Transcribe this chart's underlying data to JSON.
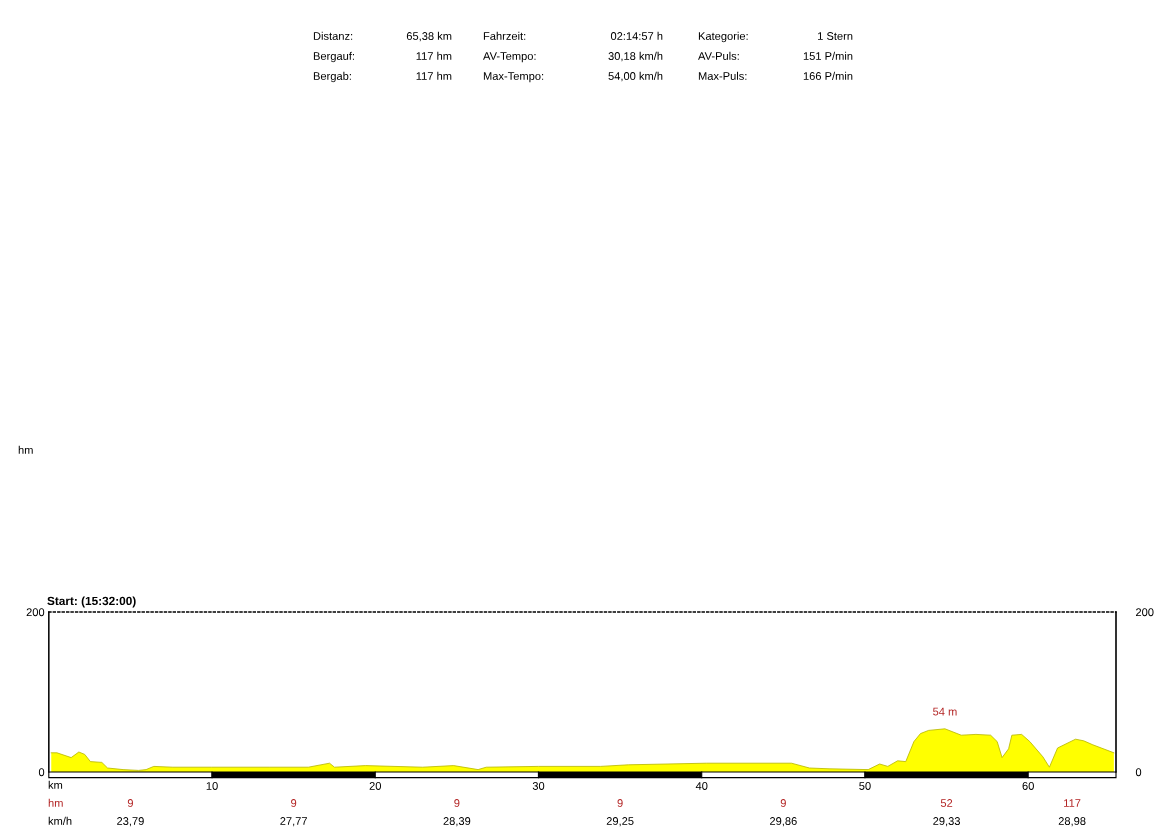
{
  "chart_data": {
    "type": "area",
    "title": "Start: (15:32:00)",
    "xlabel": "km",
    "x": [
      0.15,
      0.5,
      1.37,
      1.84,
      2.2,
      2.55,
      3.25,
      3.6,
      4.55,
      5.5,
      5.96,
      6.43,
      7.6,
      9.97,
      13.5,
      15.9,
      17.2,
      17.5,
      19.4,
      22.9,
      24.8,
      26.3,
      26.8,
      30,
      33.8,
      35.5,
      40.3,
      45.5,
      46.6,
      47.8,
      50.2,
      50.9,
      51.4,
      52,
      52.5,
      53,
      53.4,
      53.9,
      54.9,
      55.9,
      56.8,
      57.7,
      58.1,
      58.4,
      58.8,
      59,
      59.6,
      60.1,
      60.9,
      61.3,
      61.8,
      62.9,
      63.4,
      63.96,
      65.25
    ],
    "series": [
      {
        "color": "#ffff00",
        "values": [
          24,
          24,
          18,
          25,
          22,
          13,
          12,
          5,
          3,
          2,
          3,
          7,
          6,
          6,
          6,
          6,
          11,
          6,
          8,
          6,
          8,
          3,
          6,
          7,
          7,
          9,
          11,
          11,
          5,
          4,
          3,
          10,
          7,
          14,
          13,
          38,
          48,
          52,
          54,
          46,
          47,
          46,
          38,
          18,
          29,
          46,
          47,
          38,
          19,
          6,
          30,
          41,
          39,
          34,
          24
        ]
      }
    ],
    "xlim": [
      0,
      65.38
    ],
    "ylim": [
      0,
      200
    ],
    "xticks": [
      {
        "value": 0,
        "label": null
      },
      10,
      20,
      30,
      40,
      50,
      60
    ],
    "yticks": [
      0,
      200
    ],
    "y2lim": [
      0,
      200
    ],
    "y2ticks": [
      0,
      200
    ],
    "grid": false,
    "annotations": [
      "hm",
      "Distanz:",
      "65,38 km",
      "Fahrzeit:",
      "02:14:57 h",
      "Kategorie:",
      "1 Stern",
      "Bergauf:",
      "117 hm",
      "AV-Tempo:",
      "30,18 km/h",
      "AV-Puls:",
      "151 P/min",
      "Bergab:",
      "117 hm",
      "Max-Tempo:",
      "54,00 km/h",
      "Max-Puls:",
      "166 P/min",
      {
        "text": "54 m",
        "x": 54.9,
        "y": 54
      },
      "hm",
      "9",
      "9",
      "9",
      "9",
      "9",
      "52",
      "117",
      "km/h",
      "23,79",
      "27,77",
      "28,39",
      "29,25",
      "29,86",
      "29,33",
      "28,98"
    ]
  }
}
